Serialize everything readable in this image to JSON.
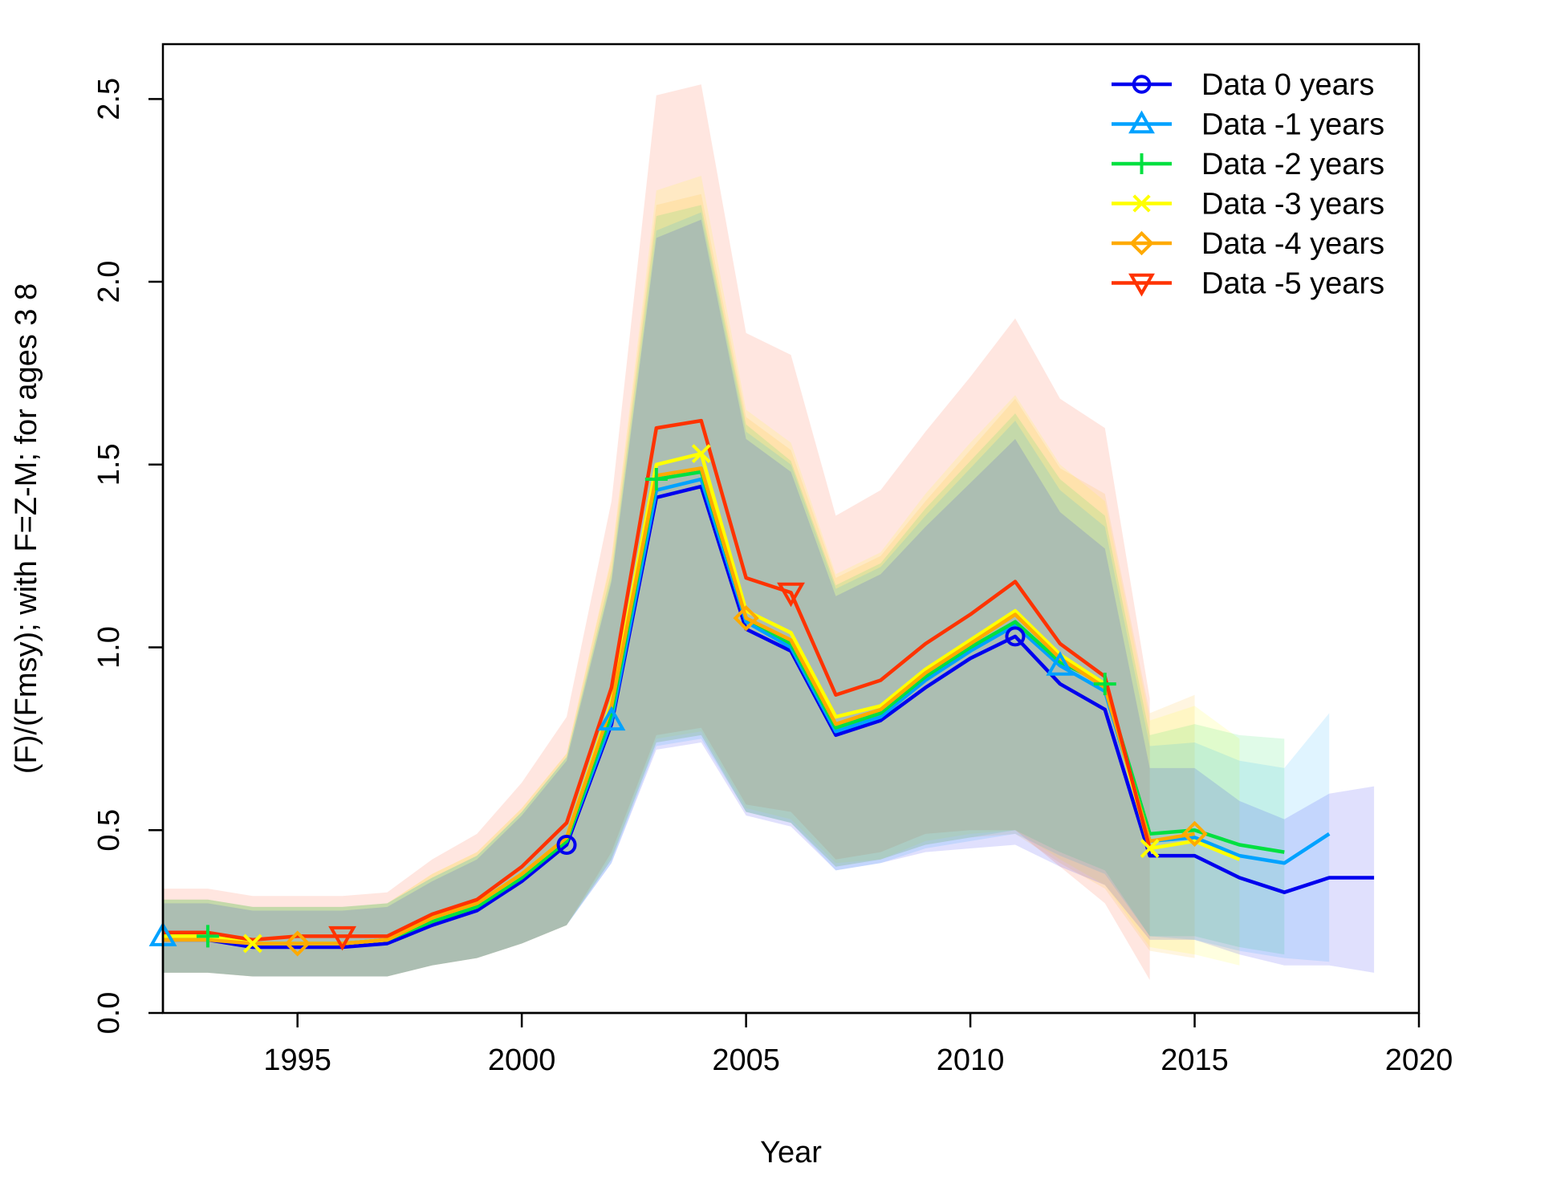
{
  "chart_data": {
    "type": "line",
    "xlabel": "Year",
    "ylabel": "(F)/(Fmsy); with F=Z-M; for ages 3 8",
    "xlim": [
      1992,
      2020
    ],
    "ylim": [
      0,
      2.65
    ],
    "x_ticks": [
      1995,
      2000,
      2005,
      2010,
      2015,
      2020
    ],
    "x_tick_labels": [
      "1995",
      "2000",
      "2005",
      "2010",
      "2015",
      "2020"
    ],
    "y_ticks": [
      0,
      0.5,
      1,
      1.5,
      2,
      2.5
    ],
    "y_tick_labels": [
      "0.0",
      "0.5",
      "1.0",
      "1.5",
      "2.0",
      "2.5"
    ],
    "grid": false,
    "legend_position": "top-right",
    "series": [
      {
        "name": "Data 0 years",
        "color": "#0000ee",
        "marker": "circle",
        "marker_x": [
          2001,
          2011
        ],
        "x": [
          1992,
          1993,
          1994,
          1995,
          1996,
          1997,
          1998,
          1999,
          2000,
          2001,
          2002,
          2003,
          2004,
          2005,
          2006,
          2007,
          2008,
          2009,
          2010,
          2011,
          2012,
          2013,
          2014,
          2015,
          2016,
          2017,
          2018,
          2019
        ],
        "y": [
          0.2,
          0.2,
          0.18,
          0.18,
          0.18,
          0.19,
          0.24,
          0.28,
          0.36,
          0.46,
          0.79,
          1.41,
          1.44,
          1.05,
          0.99,
          0.76,
          0.8,
          0.89,
          0.97,
          1.03,
          0.9,
          0.83,
          0.43,
          0.43,
          0.37,
          0.33,
          0.37,
          0.37
        ],
        "lower": [
          0.11,
          0.11,
          0.1,
          0.1,
          0.1,
          0.1,
          0.13,
          0.15,
          0.19,
          0.24,
          0.41,
          0.72,
          0.74,
          0.54,
          0.51,
          0.39,
          0.41,
          0.44,
          0.45,
          0.46,
          0.4,
          0.35,
          0.2,
          0.2,
          0.16,
          0.13,
          0.13,
          0.11
        ],
        "upper": [
          0.3,
          0.3,
          0.28,
          0.28,
          0.28,
          0.29,
          0.36,
          0.42,
          0.54,
          0.69,
          1.18,
          2.12,
          2.17,
          1.57,
          1.48,
          1.14,
          1.2,
          1.33,
          1.45,
          1.57,
          1.37,
          1.27,
          0.67,
          0.67,
          0.58,
          0.53,
          0.6,
          0.62
        ]
      },
      {
        "name": "Data -1 years",
        "color": "#00a2ff",
        "marker": "triangle",
        "marker_x": [
          1992,
          2002,
          2012
        ],
        "x": [
          1992,
          1993,
          1994,
          1995,
          1996,
          1997,
          1998,
          1999,
          2000,
          2001,
          2002,
          2003,
          2004,
          2005,
          2006,
          2007,
          2008,
          2009,
          2010,
          2011,
          2012,
          2013,
          2014,
          2015,
          2016,
          2017,
          2018
        ],
        "y": [
          0.21,
          0.21,
          0.19,
          0.19,
          0.19,
          0.2,
          0.25,
          0.29,
          0.37,
          0.47,
          0.8,
          1.43,
          1.46,
          1.07,
          1.0,
          0.77,
          0.81,
          0.91,
          0.99,
          1.06,
          0.95,
          0.88,
          0.47,
          0.48,
          0.43,
          0.41,
          0.49
        ],
        "lower": [
          0.11,
          0.11,
          0.1,
          0.1,
          0.1,
          0.1,
          0.13,
          0.15,
          0.19,
          0.24,
          0.41,
          0.73,
          0.75,
          0.55,
          0.52,
          0.39,
          0.41,
          0.45,
          0.47,
          0.49,
          0.43,
          0.38,
          0.21,
          0.2,
          0.17,
          0.15,
          0.14
        ],
        "upper": [
          0.31,
          0.31,
          0.29,
          0.29,
          0.29,
          0.3,
          0.37,
          0.43,
          0.55,
          0.7,
          1.19,
          2.14,
          2.19,
          1.59,
          1.5,
          1.16,
          1.22,
          1.36,
          1.49,
          1.62,
          1.43,
          1.33,
          0.73,
          0.74,
          0.69,
          0.67,
          0.82
        ]
      },
      {
        "name": "Data -2 years",
        "color": "#00e040",
        "marker": "plus",
        "marker_x": [
          1993,
          2003,
          2013
        ],
        "x": [
          1992,
          1993,
          1994,
          1995,
          1996,
          1997,
          1998,
          1999,
          2000,
          2001,
          2002,
          2003,
          2004,
          2005,
          2006,
          2007,
          2008,
          2009,
          2010,
          2011,
          2012,
          2013,
          2014,
          2015,
          2016,
          2017
        ],
        "y": [
          0.21,
          0.21,
          0.19,
          0.19,
          0.19,
          0.2,
          0.25,
          0.29,
          0.37,
          0.47,
          0.82,
          1.46,
          1.48,
          1.08,
          1.01,
          0.78,
          0.82,
          0.92,
          1.0,
          1.07,
          0.96,
          0.9,
          0.49,
          0.5,
          0.46,
          0.44
        ],
        "lower": [
          0.11,
          0.11,
          0.1,
          0.1,
          0.1,
          0.1,
          0.13,
          0.15,
          0.19,
          0.24,
          0.42,
          0.74,
          0.76,
          0.55,
          0.52,
          0.4,
          0.42,
          0.46,
          0.48,
          0.5,
          0.44,
          0.39,
          0.21,
          0.21,
          0.18,
          0.16
        ],
        "upper": [
          0.31,
          0.31,
          0.29,
          0.29,
          0.29,
          0.3,
          0.37,
          0.43,
          0.55,
          0.7,
          1.21,
          2.18,
          2.21,
          1.61,
          1.51,
          1.17,
          1.23,
          1.38,
          1.51,
          1.64,
          1.46,
          1.36,
          0.76,
          0.79,
          0.76,
          0.75
        ]
      },
      {
        "name": "Data -3 years",
        "color": "#ffff00",
        "marker": "cross",
        "marker_x": [
          1994,
          2004,
          2014
        ],
        "x": [
          1992,
          1993,
          1994,
          1995,
          1996,
          1997,
          1998,
          1999,
          2000,
          2001,
          2002,
          2003,
          2004,
          2005,
          2006,
          2007,
          2008,
          2009,
          2010,
          2011,
          2012,
          2013,
          2014,
          2015,
          2016
        ],
        "y": [
          0.21,
          0.21,
          0.19,
          0.19,
          0.19,
          0.2,
          0.26,
          0.3,
          0.38,
          0.48,
          0.85,
          1.5,
          1.53,
          1.1,
          1.04,
          0.81,
          0.84,
          0.94,
          1.02,
          1.1,
          0.98,
          0.9,
          0.45,
          0.47,
          0.42
        ],
        "lower": [
          0.11,
          0.11,
          0.1,
          0.1,
          0.1,
          0.1,
          0.13,
          0.15,
          0.19,
          0.24,
          0.43,
          0.75,
          0.77,
          0.56,
          0.53,
          0.41,
          0.42,
          0.47,
          0.49,
          0.5,
          0.42,
          0.35,
          0.18,
          0.16,
          0.13
        ],
        "upper": [
          0.31,
          0.31,
          0.29,
          0.29,
          0.29,
          0.3,
          0.38,
          0.44,
          0.56,
          0.71,
          1.25,
          2.25,
          2.29,
          1.65,
          1.56,
          1.2,
          1.26,
          1.42,
          1.56,
          1.69,
          1.5,
          1.4,
          0.8,
          0.84,
          0.75
        ]
      },
      {
        "name": "Data -4 years",
        "color": "#ffaa00",
        "marker": "diamond",
        "marker_x": [
          1995,
          2005,
          2015
        ],
        "x": [
          1992,
          1993,
          1994,
          1995,
          1996,
          1997,
          1998,
          1999,
          2000,
          2001,
          2002,
          2003,
          2004,
          2005,
          2006,
          2007,
          2008,
          2009,
          2010,
          2011,
          2012,
          2013,
          2014,
          2015
        ],
        "y": [
          0.2,
          0.2,
          0.19,
          0.19,
          0.19,
          0.2,
          0.26,
          0.3,
          0.38,
          0.48,
          0.84,
          1.47,
          1.49,
          1.08,
          1.02,
          0.79,
          0.83,
          0.93,
          1.01,
          1.09,
          0.97,
          0.89,
          0.47,
          0.49
        ],
        "lower": [
          0.11,
          0.11,
          0.1,
          0.1,
          0.1,
          0.1,
          0.13,
          0.15,
          0.19,
          0.24,
          0.42,
          0.74,
          0.76,
          0.55,
          0.52,
          0.4,
          0.42,
          0.46,
          0.48,
          0.49,
          0.41,
          0.34,
          0.17,
          0.15
        ],
        "upper": [
          0.31,
          0.31,
          0.29,
          0.29,
          0.29,
          0.3,
          0.38,
          0.44,
          0.56,
          0.71,
          1.24,
          2.21,
          2.24,
          1.63,
          1.54,
          1.19,
          1.25,
          1.4,
          1.54,
          1.68,
          1.49,
          1.42,
          0.82,
          0.87
        ]
      },
      {
        "name": "Data -5 years",
        "color": "#ff3300",
        "marker": "triangle-down",
        "marker_x": [
          1996,
          2006
        ],
        "x": [
          1992,
          1993,
          1994,
          1995,
          1996,
          1997,
          1998,
          1999,
          2000,
          2001,
          2002,
          2003,
          2004,
          2005,
          2006,
          2007,
          2008,
          2009,
          2010,
          2011,
          2012,
          2013,
          2014
        ],
        "y": [
          0.22,
          0.22,
          0.2,
          0.21,
          0.21,
          0.21,
          0.27,
          0.31,
          0.4,
          0.52,
          0.89,
          1.6,
          1.62,
          1.19,
          1.15,
          0.87,
          0.91,
          1.01,
          1.09,
          1.18,
          1.01,
          0.92,
          0.45
        ],
        "lower": [
          0.11,
          0.11,
          0.1,
          0.1,
          0.1,
          0.1,
          0.13,
          0.15,
          0.19,
          0.24,
          0.44,
          0.76,
          0.78,
          0.57,
          0.55,
          0.42,
          0.44,
          0.49,
          0.5,
          0.5,
          0.4,
          0.3,
          0.09
        ],
        "upper": [
          0.34,
          0.34,
          0.32,
          0.32,
          0.32,
          0.33,
          0.42,
          0.49,
          0.63,
          0.81,
          1.4,
          2.51,
          2.54,
          1.86,
          1.8,
          1.36,
          1.43,
          1.59,
          1.74,
          1.9,
          1.68,
          1.6,
          0.86
        ]
      }
    ]
  }
}
